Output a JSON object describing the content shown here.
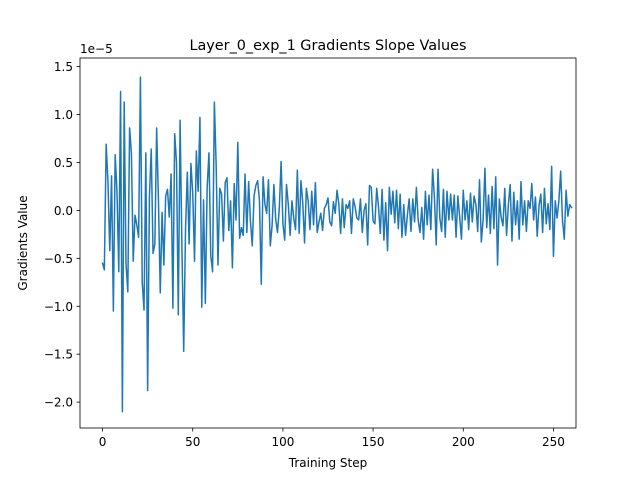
{
  "chart_data": {
    "type": "line",
    "title": "Layer_0_exp_1 Gradients Slope Values",
    "xlabel": "Training Step",
    "ylabel": "Gradients Value",
    "y_offset_label": "1e−5",
    "y_scale": 1e-05,
    "xlim": [
      -12.5,
      262.5
    ],
    "ylim": [
      -2.27,
      1.59
    ],
    "x_ticks": [
      0,
      50,
      100,
      150,
      200,
      250
    ],
    "x_tick_labels": [
      "0",
      "50",
      "100",
      "150",
      "200",
      "250"
    ],
    "y_ticks": [
      -2.0,
      -1.5,
      -1.0,
      -0.5,
      0.0,
      0.5,
      1.0,
      1.5
    ],
    "y_tick_labels": [
      "−2.0",
      "−1.5",
      "−1.0",
      "−0.5",
      "0.0",
      "0.5",
      "1.0",
      "1.5"
    ],
    "grid": false,
    "line_color": "#1f77b4",
    "series": [
      {
        "x_start": 0,
        "x_step": 1,
        "values": [
          -0.55,
          -0.62,
          0.69,
          0.3,
          -0.42,
          0.36,
          -1.05,
          0.58,
          0.2,
          -0.64,
          1.24,
          -2.1,
          1.13,
          -0.55,
          -0.85,
          0.86,
          0.6,
          -0.53,
          -0.05,
          -0.15,
          -0.28,
          1.39,
          -0.75,
          -1.04,
          0.6,
          -1.88,
          0.15,
          0.64,
          -0.45,
          -0.35,
          0.86,
          0.1,
          -0.86,
          -0.02,
          -0.57,
          0.15,
          0.22,
          -0.07,
          0.38,
          -1.02,
          0.8,
          0.5,
          -1.09,
          0.94,
          -0.38,
          -1.47,
          -0.2,
          0.4,
          -0.35,
          0.49,
          0.18,
          -0.53,
          0.62,
          0.2,
          0.97,
          -1.01,
          0.11,
          -0.97,
          0.24,
          0.6,
          -0.47,
          -0.64,
          1.13,
          0.47,
          -0.57,
          0.23,
          0.17,
          -0.32,
          0.29,
          0.34,
          -0.21,
          0.1,
          -0.6,
          0.28,
          -0.1,
          0.71,
          -0.29,
          -0.18,
          -0.26,
          0.38,
          -0.23,
          0.3,
          -0.11,
          -0.37,
          0.15,
          0.26,
          0.31,
          0.1,
          -0.77,
          0.35,
          0.07,
          -0.03,
          0.32,
          -0.37,
          -0.16,
          0.27,
          -0.09,
          -0.23,
          0.02,
          0.51,
          -0.14,
          -0.31,
          0.27,
          0.06,
          -0.26,
          0.1,
          -0.08,
          -0.2,
          0.42,
          -0.24,
          0.31,
          0.08,
          -0.34,
          0.23,
          0.1,
          -0.2,
          0.2,
          -0.15,
          0.29,
          -0.23,
          -0.12,
          -0.03,
          -0.21,
          0.02,
          0.06,
          0.13,
          -0.12,
          -0.16,
          0.09,
          -0.03,
          0.21,
          0.07,
          -0.24,
          0.12,
          -0.18,
          0.06,
          0.02,
          0.1,
          -0.24,
          0.12,
          0.04,
          -0.08,
          -0.1,
          0.12,
          -0.23,
          0.0,
          0.07,
          -0.36,
          0.26,
          0.24,
          -0.11,
          -0.14,
          0.23,
          0.04,
          -0.24,
          0.22,
          -0.31,
          0.08,
          -0.42,
          0.24,
          -0.04,
          0.2,
          -0.13,
          0.21,
          -0.19,
          0.17,
          -0.28,
          0.06,
          -0.26,
          -0.05,
          0.12,
          -0.22,
          0.12,
          -0.12,
          0.24,
          -0.1,
          -0.23,
          0.03,
          -0.3,
          0.2,
          -0.15,
          0.16,
          -0.2,
          0.43,
          0.14,
          -0.36,
          0.43,
          -0.08,
          -0.22,
          0.22,
          -0.28,
          0.2,
          -0.1,
          0.17,
          -0.1,
          0.16,
          -0.28,
          0.15,
          -0.07,
          -0.3,
          0.21,
          -0.1,
          0.1,
          -0.2,
          0.18,
          -0.12,
          0.15,
          0.06,
          -0.22,
          0.32,
          -0.33,
          -0.1,
          0.44,
          -0.18,
          0.16,
          -0.24,
          0.25,
          -0.19,
          0.35,
          -0.57,
          0.12,
          -0.07,
          -0.16,
          0.23,
          -0.26,
          0.06,
          0.27,
          -0.32,
          0.19,
          -0.15,
          0.1,
          -0.3,
          0.3,
          -0.15,
          0.1,
          -0.22,
          0.1,
          0.02,
          0.28,
          -0.1,
          0.14,
          -0.27,
          0.05,
          0.17,
          -0.23,
          0.23,
          -0.14,
          0.07,
          -0.2,
          0.46,
          -0.48,
          0.1,
          -0.08,
          0.1,
          0.41,
          -0.1,
          -0.3,
          0.21,
          -0.06,
          0.06,
          0.03
        ]
      }
    ]
  }
}
